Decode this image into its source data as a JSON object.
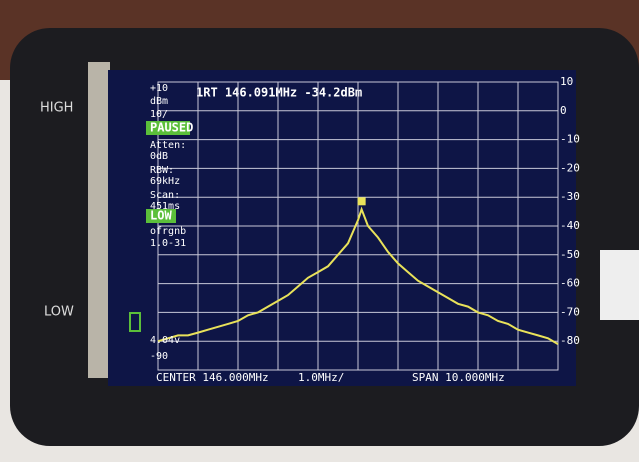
{
  "device_labels": [
    "HIGH",
    "LOW"
  ],
  "chart_data": {
    "type": "line",
    "marker_label": "1RT 146.091MHz -34.2dBm",
    "status": [
      "+10",
      "dBm",
      "10/",
      "PAUSED",
      "Atten:",
      "0dB",
      "RBW:",
      "69kHz",
      "Scan:",
      "451ms",
      "LOW",
      "ofrgnb",
      "1.0-31",
      "4.04v",
      "-90"
    ],
    "footer": [
      "CENTER 146.000MHz",
      "1.0MHz/",
      "SPAN 10.000MHz"
    ],
    "xlim": [
      141,
      151
    ],
    "ylim": [
      -90,
      10
    ],
    "yticks": [
      10,
      0,
      -10,
      -20,
      -30,
      -40,
      -50,
      -60,
      -70,
      -80
    ],
    "grid": true,
    "series": [
      {
        "color": "#e9e25a",
        "x": [
          141,
          141.25,
          141.5,
          141.75,
          142,
          142.25,
          142.5,
          142.75,
          143,
          143.25,
          143.5,
          143.75,
          144,
          144.25,
          144.5,
          144.75,
          145,
          145.25,
          145.5,
          145.75,
          146,
          146.091,
          146.25,
          146.5,
          146.75,
          147,
          147.25,
          147.5,
          147.75,
          148,
          148.25,
          148.5,
          148.75,
          149,
          149.25,
          149.5,
          149.75,
          150,
          150.25,
          150.5,
          150.75,
          151
        ],
        "values": [
          -80,
          -79,
          -78,
          -78,
          -77,
          -76,
          -75,
          -74,
          -73,
          -71,
          -70,
          -68,
          -66,
          -64,
          -61,
          -58,
          -56,
          -54,
          -50,
          -46,
          -38,
          -34.2,
          -40,
          -44,
          -49,
          -53,
          -56,
          -59,
          -61,
          -63,
          -65,
          -67,
          -68,
          -70,
          -71,
          -73,
          -74,
          -76,
          -77,
          -78,
          -79,
          -81
        ]
      }
    ]
  }
}
